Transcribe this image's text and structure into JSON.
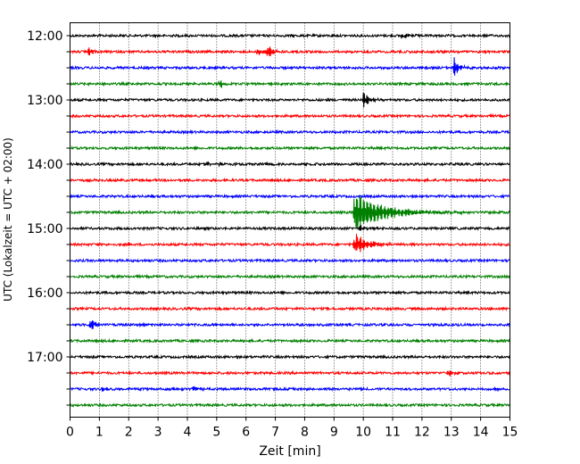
{
  "chart_data": {
    "type": "line",
    "title": "",
    "xlabel": "Zeit  [min]",
    "ylabel": "UTC (Lokalzeit = UTC + 02:00)",
    "xlim": [
      0,
      15
    ],
    "x_ticks": [
      0,
      1,
      2,
      3,
      4,
      5,
      6,
      7,
      8,
      9,
      10,
      11,
      12,
      13,
      14,
      15
    ],
    "x_tick_labels": [
      "0",
      "1",
      "2",
      "3",
      "4",
      "5",
      "6",
      "7",
      "8",
      "9",
      "10",
      "11",
      "12",
      "13",
      "14",
      "15"
    ],
    "y_tick_labels": [
      "12:00",
      "13:00",
      "14:00",
      "15:00",
      "16:00",
      "17:00"
    ],
    "grid": "vertical dotted",
    "legend": "none",
    "trace_interval_min": 15,
    "color_cycle": [
      "#000000",
      "#ff0000",
      "#0000ff",
      "#008000"
    ],
    "traces": [
      {
        "start": "12:00",
        "color": "#000000",
        "events": [
          {
            "t": 11.3,
            "amp": 3,
            "decay": 0.3
          }
        ]
      },
      {
        "start": "12:15",
        "color": "#ff0000",
        "events": [
          {
            "t": 0.6,
            "amp": 9,
            "decay": 0.12
          },
          {
            "t": 6.4,
            "amp": 5,
            "decay": 0.2
          },
          {
            "t": 6.75,
            "amp": 10,
            "decay": 0.15
          }
        ]
      },
      {
        "start": "12:30",
        "color": "#0000ff",
        "events": [
          {
            "t": 13.1,
            "amp": 14,
            "decay": 0.15
          }
        ]
      },
      {
        "start": "12:45",
        "color": "#008000",
        "events": [
          {
            "t": 5.1,
            "amp": 7,
            "decay": 0.12
          }
        ]
      },
      {
        "start": "13:00",
        "color": "#000000",
        "events": [
          {
            "t": 10.0,
            "amp": 10,
            "decay": 0.2
          }
        ]
      },
      {
        "start": "13:15",
        "color": "#ff0000",
        "events": []
      },
      {
        "start": "13:30",
        "color": "#0000ff",
        "events": []
      },
      {
        "start": "13:45",
        "color": "#008000",
        "events": []
      },
      {
        "start": "14:00",
        "color": "#000000",
        "events": [
          {
            "t": 4.6,
            "amp": 2.5,
            "decay": 0.2
          },
          {
            "t": 5.1,
            "amp": 3,
            "decay": 0.1
          }
        ]
      },
      {
        "start": "14:15",
        "color": "#ff0000",
        "events": []
      },
      {
        "start": "14:30",
        "color": "#0000ff",
        "events": []
      },
      {
        "start": "14:45",
        "color": "#008000",
        "events": [
          {
            "t": 9.7,
            "amp": 28,
            "decay": 0.9
          }
        ]
      },
      {
        "start": "15:00",
        "color": "#000000",
        "events": [
          {
            "t": 9.9,
            "amp": 4,
            "decay": 0.2
          }
        ]
      },
      {
        "start": "15:15",
        "color": "#ff0000",
        "events": [
          {
            "t": 9.7,
            "amp": 14,
            "decay": 0.45
          }
        ]
      },
      {
        "start": "15:30",
        "color": "#0000ff",
        "events": []
      },
      {
        "start": "15:45",
        "color": "#008000",
        "events": []
      },
      {
        "start": "16:00",
        "color": "#000000",
        "events": []
      },
      {
        "start": "16:15",
        "color": "#ff0000",
        "events": []
      },
      {
        "start": "16:30",
        "color": "#0000ff",
        "events": [
          {
            "t": 0.7,
            "amp": 9,
            "decay": 0.15
          }
        ]
      },
      {
        "start": "16:45",
        "color": "#008000",
        "events": []
      },
      {
        "start": "17:00",
        "color": "#000000",
        "events": []
      },
      {
        "start": "17:15",
        "color": "#ff0000",
        "events": [
          {
            "t": 12.9,
            "amp": 5,
            "decay": 0.15
          }
        ]
      },
      {
        "start": "17:30",
        "color": "#0000ff",
        "events": [
          {
            "t": 1.1,
            "amp": 3,
            "decay": 0.2
          },
          {
            "t": 4.2,
            "amp": 3,
            "decay": 0.3
          }
        ]
      },
      {
        "start": "17:45",
        "color": "#008000",
        "events": []
      }
    ]
  }
}
